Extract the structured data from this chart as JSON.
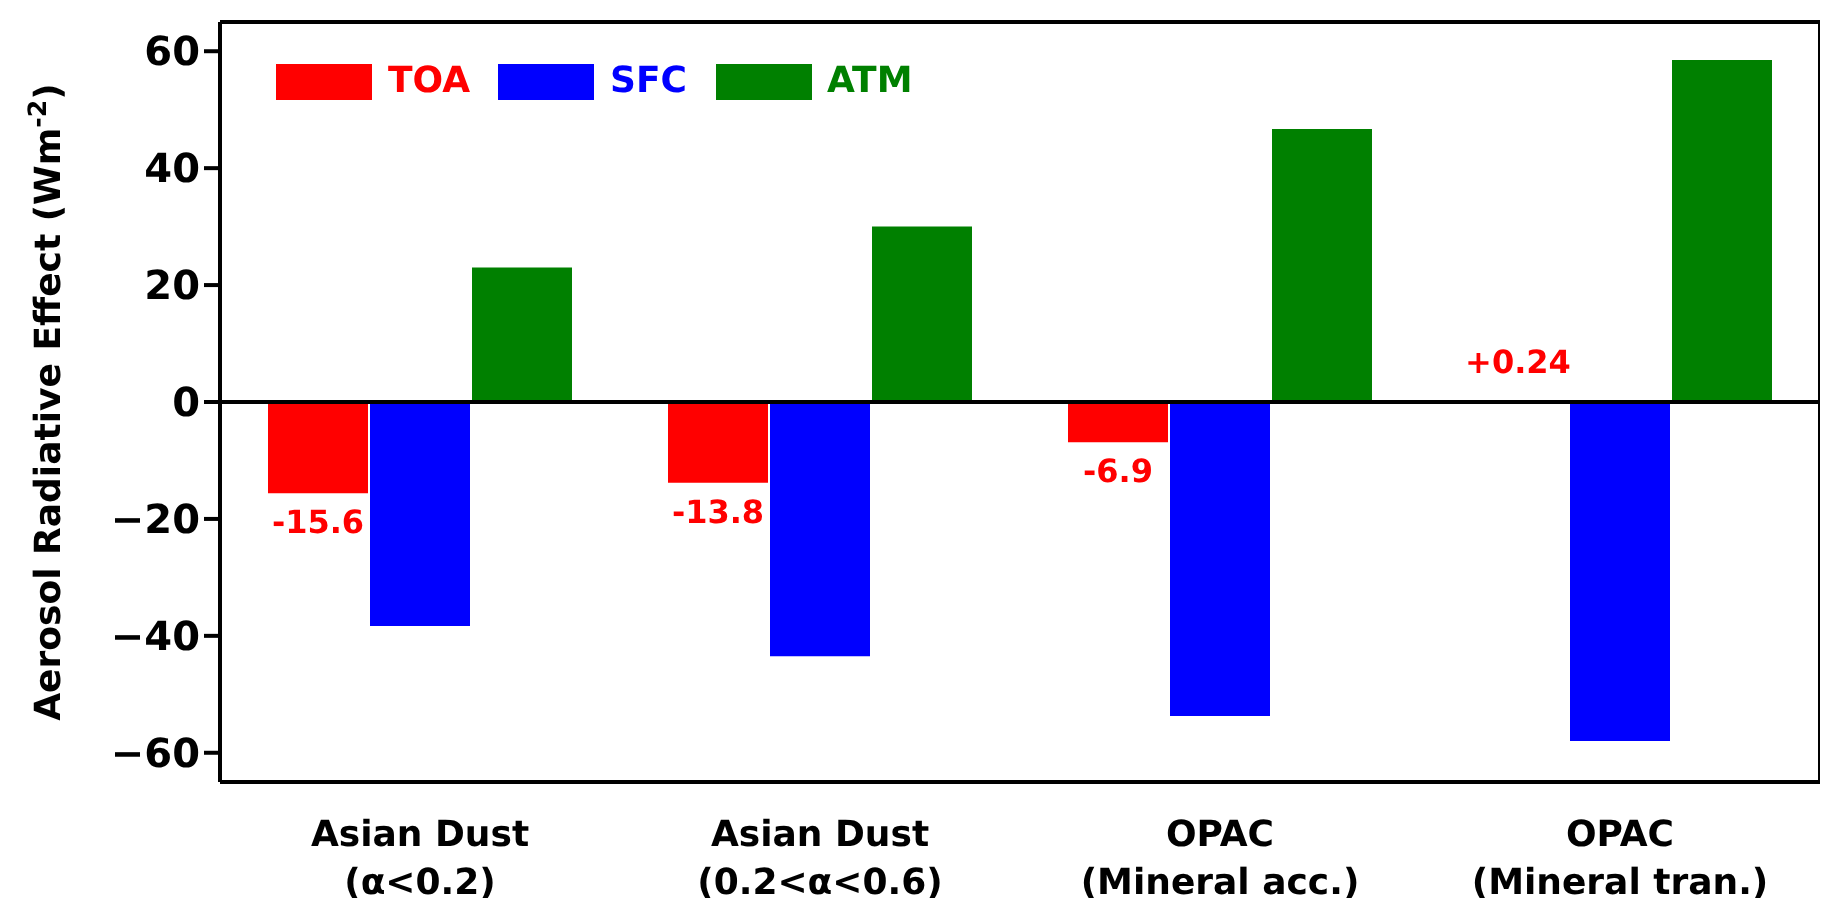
{
  "chart_data": {
    "type": "bar",
    "ylabel": "Aerosol Radiative Effect (Wm$^{-2}$)",
    "categories": [
      "Asian Dust\n(α<0.2)",
      "Asian Dust\n(0.2<α<0.6)",
      "OPAC\n(Mineral acc.)",
      "OPAC\n(Mineral tran.)"
    ],
    "series": [
      {
        "name": "TOA",
        "color": "#ff0000",
        "values": [
          -15.6,
          -13.8,
          -6.9,
          0.24
        ],
        "value_labels": [
          "-15.6",
          "-13.8",
          "-6.9",
          "+0.24"
        ]
      },
      {
        "name": "SFC",
        "color": "#0000ff",
        "values": [
          -38.3,
          -43.5,
          -53.7,
          -58
        ]
      },
      {
        "name": "ATM",
        "color": "#008000",
        "values": [
          23,
          30,
          46.7,
          58.5
        ]
      }
    ],
    "ylim": [
      -65,
      65
    ],
    "yticks": [
      -60,
      -40,
      -20,
      0,
      20,
      40,
      60
    ],
    "ref_lines": [
      {
        "axis": "y",
        "value": 0,
        "color": "#000000"
      }
    ],
    "legend": "top left",
    "grid": false
  }
}
